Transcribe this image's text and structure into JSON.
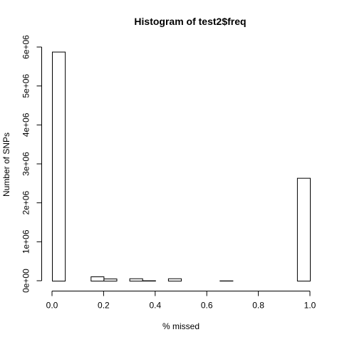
{
  "chart_data": {
    "type": "bar",
    "title": "Histogram of test2$freq",
    "xlabel": "% missed",
    "ylabel": "Number of SNPs",
    "xlim": [
      0,
      1
    ],
    "ylim": [
      0,
      6000000
    ],
    "bin_width": 0.05,
    "bins": [
      {
        "x0": 0.0,
        "x1": 0.05,
        "count": 5880000
      },
      {
        "x0": 0.05,
        "x1": 0.1,
        "count": 0
      },
      {
        "x0": 0.1,
        "x1": 0.15,
        "count": 0
      },
      {
        "x0": 0.15,
        "x1": 0.2,
        "count": 110000
      },
      {
        "x0": 0.2,
        "x1": 0.25,
        "count": 55000
      },
      {
        "x0": 0.25,
        "x1": 0.3,
        "count": 0
      },
      {
        "x0": 0.3,
        "x1": 0.35,
        "count": 60000
      },
      {
        "x0": 0.35,
        "x1": 0.4,
        "count": 8000
      },
      {
        "x0": 0.4,
        "x1": 0.45,
        "count": 0
      },
      {
        "x0": 0.45,
        "x1": 0.5,
        "count": 60000
      },
      {
        "x0": 0.5,
        "x1": 0.55,
        "count": 0
      },
      {
        "x0": 0.55,
        "x1": 0.6,
        "count": 0
      },
      {
        "x0": 0.6,
        "x1": 0.65,
        "count": 0
      },
      {
        "x0": 0.65,
        "x1": 0.7,
        "count": 5000
      },
      {
        "x0": 0.7,
        "x1": 0.75,
        "count": 0
      },
      {
        "x0": 0.75,
        "x1": 0.8,
        "count": 0
      },
      {
        "x0": 0.8,
        "x1": 0.85,
        "count": 0
      },
      {
        "x0": 0.85,
        "x1": 0.9,
        "count": 0
      },
      {
        "x0": 0.9,
        "x1": 0.95,
        "count": 0
      },
      {
        "x0": 0.95,
        "x1": 1.0,
        "count": 2640000
      }
    ],
    "x_ticks": [
      {
        "value": 0.0,
        "label": "0.0"
      },
      {
        "value": 0.2,
        "label": "0.2"
      },
      {
        "value": 0.4,
        "label": "0.4"
      },
      {
        "value": 0.6,
        "label": "0.6"
      },
      {
        "value": 0.8,
        "label": "0.8"
      },
      {
        "value": 1.0,
        "label": "1.0"
      }
    ],
    "y_ticks": [
      {
        "value": 0,
        "label": "0e+00"
      },
      {
        "value": 1000000,
        "label": "1e+06"
      },
      {
        "value": 2000000,
        "label": "2e+06"
      },
      {
        "value": 3000000,
        "label": "3e+06"
      },
      {
        "value": 4000000,
        "label": "4e+06"
      },
      {
        "value": 5000000,
        "label": "5e+06"
      },
      {
        "value": 6000000,
        "label": "6e+06"
      }
    ],
    "grid": false,
    "legend": "none"
  }
}
